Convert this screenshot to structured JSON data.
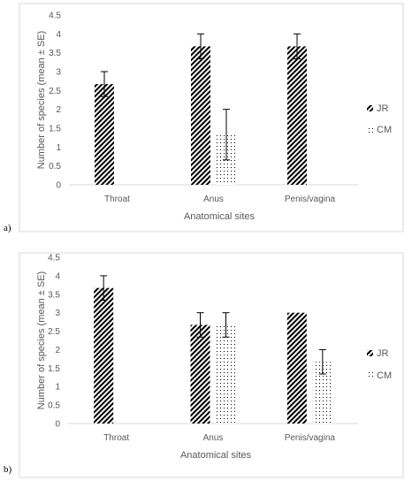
{
  "chart_data": [
    {
      "type": "bar",
      "panel_label": "a)",
      "categories": [
        "Throat",
        "Anus",
        "Penis/vagina"
      ],
      "series": [
        {
          "name": "JR",
          "values": [
            2.67,
            3.67,
            3.67
          ],
          "errors": [
            0.33,
            0.33,
            0.33
          ],
          "pattern": "diagonal-stripes"
        },
        {
          "name": "CM",
          "values": [
            null,
            1.33,
            null
          ],
          "errors": [
            null,
            0.67,
            null
          ],
          "pattern": "dots"
        }
      ],
      "xlabel": "Anatomical sites",
      "ylabel": "Number of species (mean ± SE)",
      "ylim": [
        0,
        4.5
      ],
      "yticks": [
        "0",
        "0.5",
        "1",
        "1.5",
        "2",
        "2.5",
        "3",
        "3.5",
        "4",
        "4.5"
      ],
      "legend_position": "right",
      "grid": false
    },
    {
      "type": "bar",
      "panel_label": "b)",
      "categories": [
        "Throat",
        "Anus",
        "Penis/vagina"
      ],
      "series": [
        {
          "name": "JR",
          "values": [
            3.67,
            2.67,
            3.0
          ],
          "errors": [
            0.33,
            0.33,
            null
          ],
          "pattern": "diagonal-stripes"
        },
        {
          "name": "CM",
          "values": [
            null,
            2.67,
            1.67
          ],
          "errors": [
            null,
            0.33,
            0.33
          ],
          "pattern": "dots"
        }
      ],
      "xlabel": "Anatomical sites",
      "ylabel": "Number of species (mean ± SE)",
      "ylim": [
        0,
        4.5
      ],
      "yticks": [
        "0",
        "0.5",
        "1",
        "1.5",
        "2",
        "2.5",
        "3",
        "3.5",
        "4",
        "4.5"
      ],
      "legend_position": "right",
      "grid": false
    }
  ]
}
